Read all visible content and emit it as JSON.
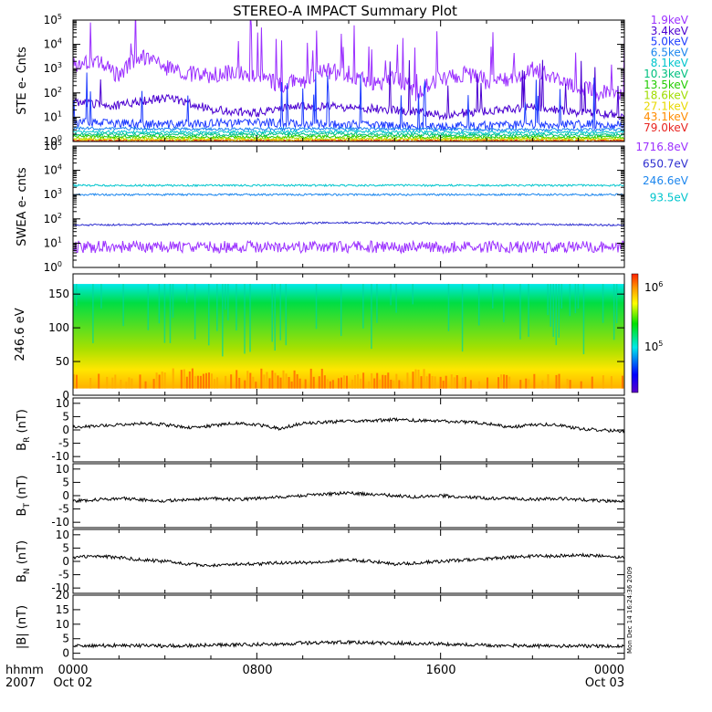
{
  "title": "STEREO-A IMPACT Summary Plot",
  "footer_left": [
    "hhmm",
    "2007"
  ],
  "x_ticks": [
    {
      "label": "0000",
      "sub": "Oct 02",
      "hour": 0
    },
    {
      "label": "0800",
      "sub": "",
      "hour": 8
    },
    {
      "label": "1600",
      "sub": "",
      "hour": 16
    },
    {
      "label": "0000",
      "sub": "Oct 03",
      "hour": 24
    }
  ],
  "timestamp": "Mon Dec 14 16:24:36 2009",
  "colors": {
    "axes": "#000000",
    "background": "#ffffff"
  },
  "chart_data": [
    {
      "id": "ste",
      "type": "line",
      "ylabel": "STE e- Cnts",
      "yscale": "log",
      "ylim": [
        1,
        100000
      ],
      "ytick_exponents": [
        0,
        1,
        2,
        3,
        4,
        5
      ],
      "x_unit": "hours from 2007 Oct 02 00:00",
      "xlim": [
        0,
        24
      ],
      "series": [
        {
          "name": "1.9keV",
          "color": "#9b30ff",
          "x": [
            0,
            1,
            2,
            3,
            4,
            5,
            6,
            7,
            8,
            9,
            10,
            11,
            12,
            13,
            14,
            15,
            16,
            17,
            18,
            19,
            20,
            21,
            22,
            23,
            24
          ],
          "values": [
            1500,
            2000,
            400,
            3000,
            1200,
            600,
            500,
            700,
            500,
            200,
            300,
            800,
            600,
            200,
            400,
            60,
            400,
            600,
            300,
            400,
            900,
            400,
            150,
            100,
            120
          ]
        },
        {
          "name": "3.4keV",
          "color": "#4b00d1",
          "x": [
            0,
            2,
            4,
            6,
            8,
            10,
            12,
            14,
            16,
            18,
            20,
            22,
            24
          ],
          "values": [
            40,
            30,
            60,
            20,
            15,
            30,
            25,
            20,
            12,
            18,
            25,
            15,
            12
          ]
        },
        {
          "name": "5.0keV",
          "color": "#1f3cff",
          "x": [
            0,
            4,
            8,
            12,
            16,
            20,
            24
          ],
          "values": [
            6,
            5,
            6,
            5,
            4,
            5,
            5
          ]
        },
        {
          "name": "6.5keV",
          "color": "#1c86ee",
          "x": [
            0,
            6,
            12,
            18,
            24
          ],
          "values": [
            3.5,
            3.2,
            3.4,
            3.0,
            3.1
          ]
        },
        {
          "name": "8.1keV",
          "color": "#00c5cd",
          "x": [
            0,
            6,
            12,
            18,
            24
          ],
          "values": [
            2.5,
            2.4,
            2.6,
            2.3,
            2.4
          ]
        },
        {
          "name": "10.3keV",
          "color": "#00c080",
          "x": [
            0,
            6,
            12,
            18,
            24
          ],
          "values": [
            2.0,
            1.9,
            2.0,
            1.8,
            1.9
          ]
        },
        {
          "name": "13.5keV",
          "color": "#22cc00",
          "x": [
            0,
            6,
            12,
            18,
            24
          ],
          "values": [
            1.6,
            1.5,
            1.6,
            1.5,
            1.5
          ]
        },
        {
          "name": "18.6keV",
          "color": "#a0dd00",
          "x": [
            0,
            12,
            24
          ],
          "values": [
            1.3,
            1.3,
            1.3
          ]
        },
        {
          "name": "27.1keV",
          "color": "#e8d800",
          "x": [
            0,
            12,
            24
          ],
          "values": [
            1.15,
            1.15,
            1.15
          ]
        },
        {
          "name": "43.1keV",
          "color": "#ff8c00",
          "x": [
            0,
            12,
            24
          ],
          "values": [
            1.05,
            1.05,
            1.05
          ]
        },
        {
          "name": "79.0keV",
          "color": "#e8231f",
          "x": [
            0,
            12,
            24
          ],
          "values": [
            1.0,
            1.0,
            1.0
          ]
        }
      ]
    },
    {
      "id": "swea",
      "type": "line",
      "ylabel": "SWEA e- cnts",
      "yscale": "log",
      "ylim": [
        1,
        100000
      ],
      "ytick_exponents": [
        0,
        1,
        2,
        3,
        4,
        5
      ],
      "x_unit": "hours from 2007 Oct 02 00:00",
      "xlim": [
        0,
        24
      ],
      "series": [
        {
          "name": "1716.8eV",
          "color": "#9b30ff",
          "x": [
            0,
            12,
            24
          ],
          "values": [
            7,
            7,
            7
          ]
        },
        {
          "name": "650.7eV",
          "color": "#2f2fd0",
          "x": [
            0,
            12,
            24
          ],
          "values": [
            55,
            70,
            55
          ]
        },
        {
          "name": "246.6eV",
          "color": "#1c86ee",
          "x": [
            0,
            12,
            24
          ],
          "values": [
            1000,
            1000,
            1000
          ]
        },
        {
          "name": "93.5eV",
          "color": "#00c5cd",
          "x": [
            0,
            12,
            24
          ],
          "values": [
            2400,
            2400,
            2400
          ]
        }
      ]
    },
    {
      "id": "pad",
      "type": "heatmap",
      "ylabel": "246.6 eV",
      "ylim": [
        0,
        180
      ],
      "y_ticks": [
        0,
        50,
        100,
        150
      ],
      "x_unit": "hours from 2007 Oct 02 00:00",
      "xlim": [
        0,
        24
      ],
      "colorbar": {
        "labels": [
          "10^6",
          "10^5"
        ],
        "colors": [
          "#ff2200",
          "#ff9900",
          "#ffff00",
          "#00e000",
          "#00e8e8",
          "#0000ff",
          "#5a00c8"
        ]
      }
    },
    {
      "id": "br",
      "type": "line",
      "ylabel": "B_R (nT)",
      "ylabel_main": "B",
      "ylabel_sub": "R",
      "ylabel_unit": "(nT)",
      "ylim": [
        -12,
        12
      ],
      "y_ticks": [
        -10,
        -5,
        0,
        5,
        10
      ],
      "x_unit": "hours from 2007 Oct 02 00:00",
      "xlim": [
        0,
        24
      ],
      "series": [
        {
          "x": [
            0,
            1,
            2,
            3,
            4,
            5,
            6,
            7,
            8,
            9,
            10,
            11,
            12,
            13,
            14,
            15,
            16,
            17,
            18,
            19,
            20,
            21,
            22,
            23,
            24
          ],
          "values": [
            1.0,
            1.5,
            2.0,
            2.5,
            2.0,
            1.0,
            1.5,
            2.5,
            2.0,
            0.5,
            2.5,
            3.0,
            3.2,
            3.5,
            3.8,
            3.5,
            3.3,
            3.0,
            2.5,
            1.0,
            2.0,
            2.0,
            0.5,
            0.0,
            -0.5
          ]
        }
      ]
    },
    {
      "id": "bt",
      "type": "line",
      "ylabel": "B_T (nT)",
      "ylabel_main": "B",
      "ylabel_sub": "T",
      "ylabel_unit": "(nT)",
      "ylim": [
        -12,
        12
      ],
      "y_ticks": [
        -10,
        -5,
        0,
        5,
        10
      ],
      "x_unit": "hours from 2007 Oct 02 00:00",
      "xlim": [
        0,
        24
      ],
      "series": [
        {
          "x": [
            0,
            1,
            2,
            3,
            4,
            5,
            6,
            7,
            8,
            9,
            10,
            11,
            12,
            13,
            14,
            15,
            16,
            17,
            18,
            19,
            20,
            21,
            22,
            23,
            24
          ],
          "values": [
            -2.0,
            -1.5,
            -1.0,
            -1.5,
            -2.0,
            -1.5,
            -1.0,
            -1.5,
            -1.0,
            -0.5,
            0.0,
            0.5,
            1.0,
            0.5,
            0.0,
            -0.5,
            0.0,
            -0.5,
            -1.0,
            -1.0,
            -1.5,
            -1.0,
            -1.5,
            -2.0,
            -2.0
          ]
        }
      ]
    },
    {
      "id": "bn",
      "type": "line",
      "ylabel": "B_N (nT)",
      "ylabel_main": "B",
      "ylabel_sub": "N",
      "ylabel_unit": "(nT)",
      "ylim": [
        -12,
        12
      ],
      "y_ticks": [
        -10,
        -5,
        0,
        5,
        10
      ],
      "x_unit": "hours from 2007 Oct 02 00:00",
      "xlim": [
        0,
        24
      ],
      "series": [
        {
          "x": [
            0,
            1,
            2,
            3,
            4,
            5,
            6,
            7,
            8,
            9,
            10,
            11,
            12,
            13,
            14,
            15,
            16,
            17,
            18,
            19,
            20,
            21,
            22,
            23,
            24
          ],
          "values": [
            1.5,
            2.0,
            1.5,
            0.5,
            0.0,
            -1.0,
            -1.5,
            -1.0,
            -1.0,
            -0.5,
            -0.5,
            0.0,
            0.5,
            0.0,
            -1.0,
            -0.5,
            0.0,
            0.5,
            1.0,
            1.5,
            2.0,
            2.0,
            2.5,
            2.0,
            1.5
          ]
        }
      ]
    },
    {
      "id": "bmag",
      "type": "line",
      "ylabel": "|B| (nT)",
      "ylim": [
        -2,
        20
      ],
      "y_ticks": [
        0,
        5,
        10,
        15,
        20
      ],
      "x_unit": "hours from 2007 Oct 02 00:00",
      "xlim": [
        0,
        24
      ],
      "series": [
        {
          "x": [
            0,
            2,
            4,
            6,
            8,
            10,
            12,
            14,
            16,
            18,
            20,
            22,
            24
          ],
          "values": [
            2.5,
            2.7,
            2.5,
            2.8,
            3.0,
            3.5,
            3.8,
            3.5,
            3.2,
            2.8,
            2.5,
            2.5,
            2.5
          ]
        }
      ]
    }
  ]
}
